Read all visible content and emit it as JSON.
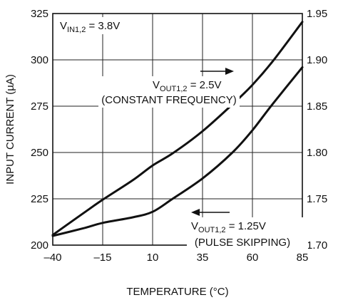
{
  "chart_data": {
    "type": "line",
    "title": "",
    "xlabel": "TEMPERATURE (°C)",
    "ylabel": "INPUT CURRENT (µA)",
    "xlim": [
      -40,
      85
    ],
    "ylim": [
      200,
      325
    ],
    "y2lim": [
      1.7,
      1.95
    ],
    "grid": true,
    "x_ticks": [
      "–40",
      "–15",
      "10",
      "35",
      "60",
      "85"
    ],
    "y_ticks": [
      "200",
      "225",
      "250",
      "275",
      "300",
      "325"
    ],
    "y2_ticks": [
      "1.70",
      "1.75",
      "1.80",
      "1.85",
      "1.90",
      "1.95"
    ],
    "series": [
      {
        "name": "VOUT1,2 = 2.5V (CONSTANT FREQUENCY)",
        "axis": "right",
        "x": [
          -40,
          -25,
          -15,
          0,
          10,
          20,
          35,
          50,
          60,
          70,
          85
        ],
        "y": [
          1.711,
          1.734,
          1.749,
          1.77,
          1.786,
          1.799,
          1.823,
          1.852,
          1.873,
          1.898,
          1.941
        ]
      },
      {
        "name": "VOUT1,2 = 1.25V (PULSE SKIPPING)",
        "axis": "left",
        "x": [
          -40,
          -25,
          -15,
          0,
          10,
          20,
          35,
          50,
          60,
          70,
          85
        ],
        "y": [
          205,
          209,
          212,
          215,
          218,
          225,
          236,
          250,
          262,
          276,
          296
        ]
      }
    ],
    "annotations": {
      "vin": {
        "main": "V",
        "sub": "IN1,2",
        "rest": " = 3.8V"
      },
      "top": {
        "main": "V",
        "sub": "OUT1,2",
        "rest": " =  2.5V",
        "line2": "(CONSTANT FREQUENCY)"
      },
      "bottom": {
        "main": "V",
        "sub": "OUT1,2",
        "rest": " = 1.25V",
        "line2": "(PULSE SKIPPING)"
      }
    }
  }
}
